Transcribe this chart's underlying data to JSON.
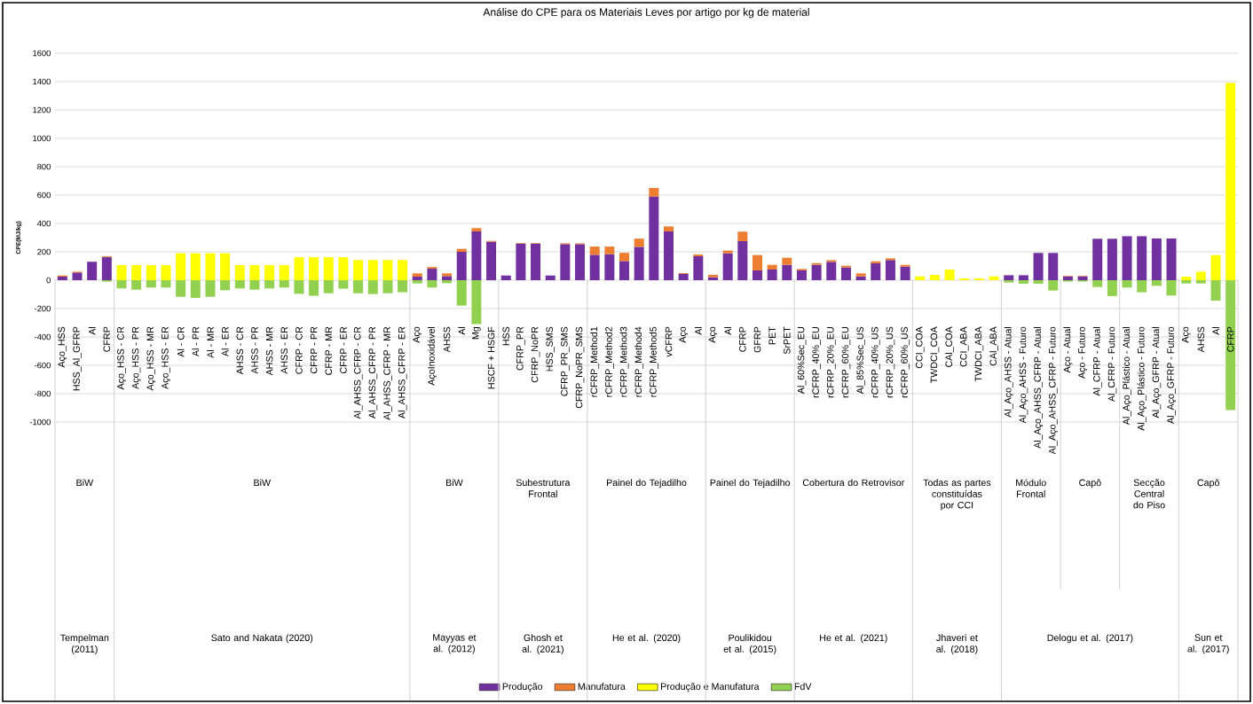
{
  "chart_data": {
    "type": "bar",
    "stacked": true,
    "title": "Análise do CPE para os Materiais Leves por artigo por kg de material",
    "ylabel": "CPE(MJ/kg)",
    "categories": [
      "Aço_HSS",
      "HSS_Al_GFRP",
      "Al",
      "CFRP",
      "Aço_HSS - CR",
      "Aço_HSS - PR",
      "Aço_HSS - MR",
      "Aço_HSS - ER",
      "Al - CR",
      "Al - PR",
      "Al - MR",
      "Al - ER",
      "AHSS - CR",
      "AHSS - PR",
      "AHSS - MR",
      "AHSS - ER",
      "CFRP - CR",
      "CFRP - PR",
      "CFRP - MR",
      "CFRP - ER",
      "Al_AHSS_CFRP - CR",
      "Al_AHSS_CFRP - PR",
      "Al_AHSS_CFRP - MR",
      "Al_AHSS_CFRP - ER",
      "Aço",
      "AçoInoxidável",
      "AHSS",
      "Al",
      "Mg",
      "HSCF + HSGF",
      "HSS",
      "CFRP_PR",
      "CFRP_NoPR",
      "HSS_SMS",
      "CFRP_PR_SMS",
      "CFRP_NoPR_SMS",
      "rCFRP_Method1",
      "rCFRP_Method2",
      "rCFRP_Method3",
      "rCFRP_Method4",
      "rCFRP_Method5",
      "vCFRP",
      "Aço",
      "Al",
      "Aço",
      "Al",
      "CFRP",
      "GFRP",
      "PET",
      "SrPET",
      "Al_60%Sec_EU",
      "rCFRP_40%_EU",
      "rCFRP_20%_EU",
      "rCFRP_60%_EU",
      "Al_85%Sec_US",
      "rCFRP_40%_US",
      "rCFRP_20%_US",
      "rCFRP_60%_US",
      "CCI_COA",
      "TWDCI_COA",
      "CAl_COA",
      "CCI_ABA",
      "TWDCI_ABA",
      "CAl_ABA",
      "Al_Aço_AHSS - Atual",
      "Al_Aço_AHSS - Futuro",
      "Al_Aço_AHSS_CFRP - Atual",
      "Al_Aço_AHSS_CFRP - Futuro",
      "Aço - Atual",
      "Aço - Futuro",
      "Al_CFRP - Atual",
      "Al_CFRP - Futuro",
      "Al_Aço_Plástico - Atual",
      "Al_Aço_Plástico - Futuro",
      "Al_Aço_GFRP - Atual",
      "Al_Aço_GFRP - Futuro",
      "Aço",
      "AHSS",
      "Al",
      "CFRP"
    ],
    "series": [
      {
        "name": "Produção",
        "color": "#7030a0",
        "values": [
          25,
          54,
          130,
          162,
          null,
          null,
          null,
          null,
          null,
          null,
          null,
          null,
          null,
          null,
          null,
          null,
          null,
          null,
          null,
          null,
          null,
          null,
          null,
          null,
          25,
          81,
          29,
          200,
          344,
          271,
          33,
          258,
          258,
          33,
          254,
          254,
          179,
          183,
          135,
          235,
          590,
          344,
          44,
          169,
          21,
          190,
          275,
          69,
          75,
          108,
          69,
          108,
          129,
          90,
          27,
          119,
          142,
          96,
          null,
          null,
          null,
          null,
          null,
          null,
          35,
          35,
          192,
          192,
          27,
          27,
          292,
          292,
          310,
          310,
          294,
          294,
          null,
          null,
          null,
          null
        ]
      },
      {
        "name": "Manufatura",
        "color": "#ed7d31",
        "values": [
          8,
          6,
          null,
          6,
          null,
          null,
          null,
          null,
          null,
          null,
          null,
          null,
          null,
          null,
          null,
          null,
          null,
          null,
          null,
          null,
          null,
          null,
          null,
          null,
          23,
          12,
          19,
          21,
          23,
          6,
          null,
          4,
          4,
          null,
          6,
          6,
          58,
          54,
          58,
          58,
          60,
          35,
          6,
          12,
          17,
          19,
          67,
          108,
          33,
          50,
          10,
          12,
          12,
          12,
          21,
          14,
          12,
          12,
          null,
          null,
          null,
          null,
          null,
          null,
          null,
          null,
          null,
          null,
          4,
          4,
          null,
          null,
          null,
          null,
          null,
          null,
          null,
          null,
          null,
          null
        ]
      },
      {
        "name": "Produção e Manufatura",
        "color": "#ffff00",
        "values": [
          null,
          null,
          null,
          null,
          106,
          106,
          106,
          106,
          190,
          190,
          190,
          190,
          106,
          106,
          106,
          106,
          162,
          162,
          162,
          162,
          142,
          142,
          142,
          142,
          null,
          null,
          null,
          null,
          null,
          null,
          null,
          null,
          null,
          null,
          null,
          null,
          null,
          null,
          null,
          null,
          null,
          null,
          null,
          null,
          null,
          null,
          null,
          null,
          null,
          null,
          null,
          null,
          null,
          null,
          null,
          null,
          null,
          null,
          27,
          37,
          75,
          12,
          12,
          27,
          null,
          null,
          null,
          null,
          null,
          null,
          null,
          null,
          null,
          null,
          null,
          null,
          25,
          60,
          177,
          1390
        ]
      },
      {
        "name": "FdV",
        "color": "#92d050",
        "values": [
          null,
          null,
          null,
          -10,
          -58,
          -67,
          -52,
          -52,
          -117,
          -125,
          -117,
          -71,
          -58,
          -67,
          -58,
          -52,
          -96,
          -110,
          -92,
          -60,
          -92,
          -98,
          -92,
          -85,
          -23,
          -52,
          -21,
          -179,
          -310,
          null,
          null,
          null,
          null,
          null,
          null,
          null,
          null,
          null,
          null,
          null,
          null,
          null,
          null,
          null,
          null,
          null,
          null,
          null,
          null,
          null,
          null,
          null,
          null,
          null,
          null,
          null,
          null,
          null,
          null,
          null,
          null,
          null,
          null,
          null,
          -17,
          -25,
          -25,
          -73,
          -10,
          -10,
          -48,
          -112,
          -52,
          -85,
          -40,
          -108,
          -23,
          -23,
          -144,
          -915
        ]
      }
    ],
    "ylim": [
      -1000,
      1600
    ],
    "yticks": [
      -1000,
      -800,
      -600,
      -400,
      -200,
      0,
      200,
      400,
      600,
      800,
      1000,
      1200,
      1400,
      1600
    ],
    "grid": "y",
    "legend": "bottom",
    "annotations": [
      "BiW",
      "BiW",
      "BiW",
      "Subestrutura Frontal",
      "Painel do Tejadilho",
      "Painel do Tejadilho",
      "Cobertura do Retrovisor",
      "Todas as partes constituídas por CCI",
      "Módulo Frontal",
      "Capô",
      "Secção Central do Piso",
      "Capô",
      "Tempelman (2011)",
      "Sato and Nakata (2020)",
      "Mayyas et al. (2012)",
      "Ghosh et al. (2021)",
      "He et al. (2020)",
      "Poulikidou et al. (2015)",
      "He et al. (2021)",
      "Jhaveri et al. (2018)",
      "Delogu et al. (2017)",
      "Sun et al. (2017)"
    ]
  }
}
